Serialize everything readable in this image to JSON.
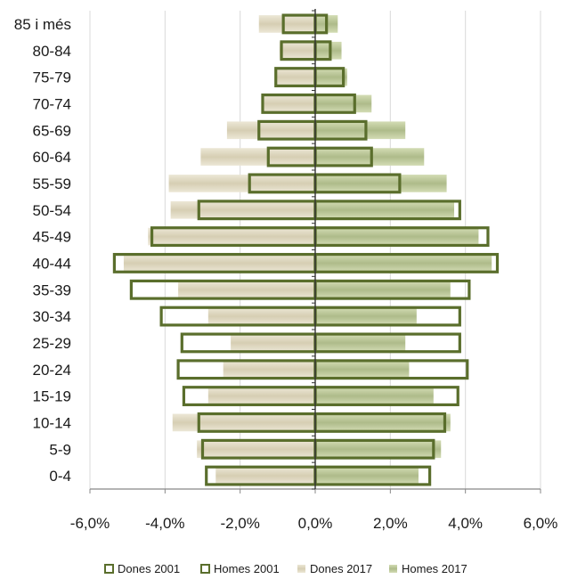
{
  "chart_data": {
    "type": "bar",
    "orientation": "horizontal",
    "subtype": "population-pyramid",
    "categories": [
      "0-4",
      "5-9",
      "10-14",
      "15-19",
      "20-24",
      "25-29",
      "30-34",
      "35-39",
      "40-44",
      "45-49",
      "50-54",
      "55-59",
      "60-64",
      "65-69",
      "70-74",
      "75-79",
      "80-84",
      "85 i més"
    ],
    "series": [
      {
        "name": "Dones 2001",
        "style": "outline",
        "color": "#5a6e2c",
        "values": [
          -2.9,
          -3.0,
          -3.1,
          -3.5,
          -3.65,
          -3.55,
          -4.1,
          -4.9,
          -5.35,
          -4.35,
          -3.1,
          -1.75,
          -1.25,
          -1.5,
          -1.4,
          -1.05,
          -0.9,
          -0.85
        ]
      },
      {
        "name": "Homes 2001",
        "style": "outline",
        "color": "#5a6e2c",
        "values": [
          3.05,
          3.15,
          3.45,
          3.8,
          4.05,
          3.85,
          3.85,
          4.1,
          4.85,
          4.6,
          3.85,
          2.25,
          1.5,
          1.35,
          1.05,
          0.75,
          0.4,
          0.3
        ]
      },
      {
        "name": "Dones 2017",
        "style": "fill",
        "color": "#ddd6bf",
        "values": [
          -2.65,
          -3.15,
          -3.8,
          -2.85,
          -2.45,
          -2.25,
          -2.85,
          -3.65,
          -5.1,
          -4.45,
          -3.85,
          -3.9,
          -3.05,
          -2.35,
          -1.4,
          -1.05,
          -0.95,
          -1.5
        ]
      },
      {
        "name": "Homes 2017",
        "style": "fill",
        "color": "#b7c19a",
        "values": [
          2.75,
          3.35,
          3.6,
          3.15,
          2.5,
          2.4,
          2.7,
          3.6,
          4.7,
          4.35,
          3.7,
          3.5,
          2.9,
          2.4,
          1.5,
          0.85,
          0.7,
          0.6
        ]
      }
    ],
    "xlim": [
      -6,
      6
    ],
    "xticks": [
      "-6,0%",
      "-4,0%",
      "-2,0%",
      "0,0%",
      "2,0%",
      "4,0%",
      "6,0%"
    ],
    "xtick_values": [
      -6,
      -4,
      -2,
      0,
      2,
      4,
      6
    ],
    "grid": "vertical",
    "legend_position": "bottom",
    "colors": {
      "outline": "#5a6e2c",
      "dones_2017": "#ddd6bf",
      "homes_2017": "#b7c19a",
      "grid": "#d9d9d9",
      "axis": "#888888"
    }
  }
}
